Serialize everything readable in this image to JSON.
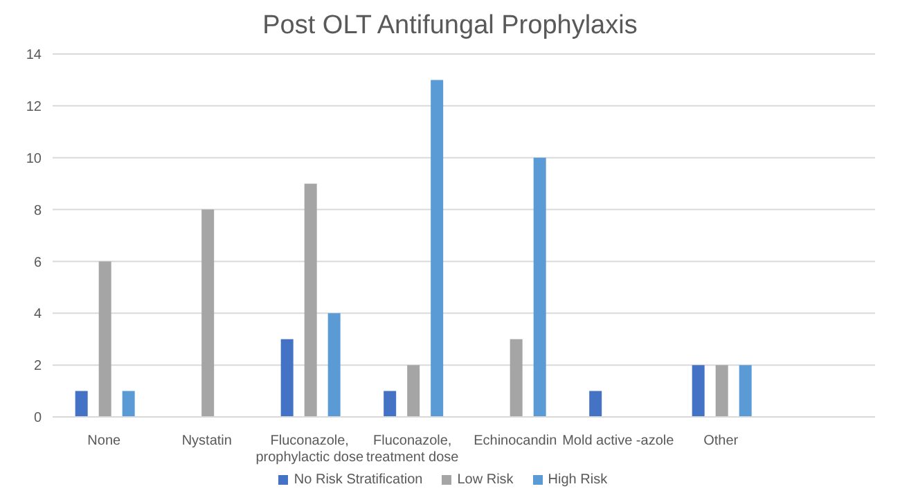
{
  "chart_data": {
    "type": "bar",
    "title": "Post OLT Antifungal Prophylaxis",
    "categories": [
      "None",
      "Nystatin",
      "Fluconazole, prophylactic dose",
      "Fluconazole, treatment dose",
      "Echinocandin",
      "Mold active -azole",
      "Other",
      null
    ],
    "series": [
      {
        "name": "No Risk Stratification",
        "color": "#4472c4",
        "values": [
          1,
          0,
          3,
          1,
          0,
          1,
          2,
          null
        ]
      },
      {
        "name": "Low Risk",
        "color": "#a5a5a5",
        "values": [
          6,
          8,
          9,
          2,
          3,
          0,
          2,
          null
        ]
      },
      {
        "name": "High Risk",
        "color": "#5b9bd5",
        "values": [
          1,
          0,
          4,
          13,
          10,
          0,
          2,
          null
        ]
      }
    ],
    "ylim": [
      0,
      14
    ],
    "yticks": [
      0,
      2,
      4,
      6,
      8,
      10,
      12,
      14
    ],
    "grid": "y",
    "legend": "bottom"
  }
}
